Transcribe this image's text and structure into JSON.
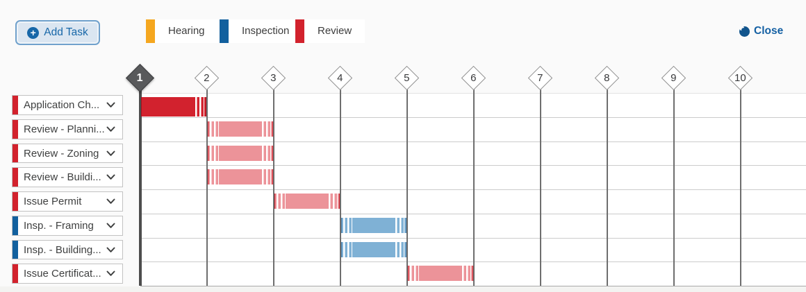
{
  "toolbar": {
    "add_task_label": "Add Task",
    "close_label": "Close"
  },
  "legend": [
    {
      "label": "Hearing",
      "color": "#F5A71F"
    },
    {
      "label": "Inspection",
      "color": "#12609E"
    },
    {
      "label": "Review",
      "color": "#D2222D"
    }
  ],
  "timeline": {
    "markers": [
      "1",
      "2",
      "3",
      "4",
      "5",
      "6",
      "7",
      "8",
      "9",
      "10"
    ],
    "selected_marker": "1"
  },
  "tasks": [
    {
      "name": "Application Ch...",
      "category": "review",
      "start": 1,
      "end": 2,
      "active": true
    },
    {
      "name": "Review - Planni...",
      "category": "review",
      "start": 2,
      "end": 3,
      "active": false
    },
    {
      "name": "Review - Zoning",
      "category": "review",
      "start": 2,
      "end": 3,
      "active": false
    },
    {
      "name": "Review - Buildi...",
      "category": "review",
      "start": 2,
      "end": 3,
      "active": false
    },
    {
      "name": "Issue Permit",
      "category": "review",
      "start": 3,
      "end": 4,
      "active": false
    },
    {
      "name": "Insp. - Framing",
      "category": "inspection",
      "start": 4,
      "end": 5,
      "active": false
    },
    {
      "name": "Insp. - Building...",
      "category": "inspection",
      "start": 4,
      "end": 5,
      "active": false
    },
    {
      "name": "Issue Certificat...",
      "category": "review",
      "start": 5,
      "end": 6,
      "active": false
    }
  ],
  "colors": {
    "review_accent": "#D2222D",
    "inspection_accent": "#12609E",
    "review_bar": "#EC9399",
    "inspection_bar": "#7FB1D5",
    "active_bar": "#D2222E",
    "link_blue": "#1460A3"
  },
  "chart_data": {
    "type": "gantt",
    "x_units": "periods",
    "x_ticks": [
      1,
      2,
      3,
      4,
      5,
      6,
      7,
      8,
      9,
      10
    ],
    "selected_tick": 1,
    "rows": [
      {
        "task": "Application Ch...",
        "category": "Review",
        "start": 1,
        "end": 2
      },
      {
        "task": "Review - Planni...",
        "category": "Review",
        "start": 2,
        "end": 3
      },
      {
        "task": "Review - Zoning",
        "category": "Review",
        "start": 2,
        "end": 3
      },
      {
        "task": "Review - Buildi...",
        "category": "Review",
        "start": 2,
        "end": 3
      },
      {
        "task": "Issue Permit",
        "category": "Review",
        "start": 3,
        "end": 4
      },
      {
        "task": "Insp. - Framing",
        "category": "Inspection",
        "start": 4,
        "end": 5
      },
      {
        "task": "Insp. - Building...",
        "category": "Inspection",
        "start": 4,
        "end": 5
      },
      {
        "task": "Issue Certificat...",
        "category": "Review",
        "start": 5,
        "end": 6
      }
    ],
    "legend_entries": [
      "Hearing",
      "Inspection",
      "Review"
    ]
  }
}
